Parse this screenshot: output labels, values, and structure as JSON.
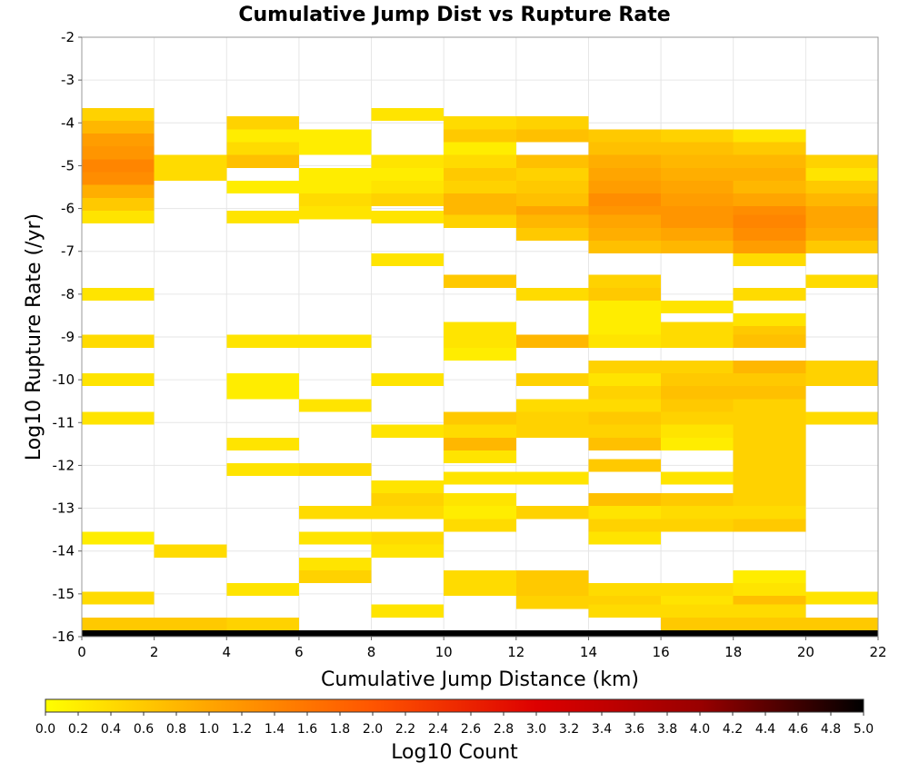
{
  "chart_data": {
    "type": "heatmap",
    "title": "Cumulative Jump Dist vs Rupture Rate",
    "xlabel": "Cumulative Jump Distance (km)",
    "ylabel": "Log10 Rupture Rate (/yr)",
    "xlim": [
      0,
      22
    ],
    "ylim": [
      -16,
      -2
    ],
    "x_ticks": [
      0,
      2,
      4,
      6,
      8,
      10,
      12,
      14,
      16,
      18,
      20,
      22
    ],
    "y_ticks": [
      -2,
      -3,
      -4,
      -5,
      -6,
      -7,
      -8,
      -9,
      -10,
      -11,
      -12,
      -13,
      -14,
      -15,
      -16
    ],
    "grid": true,
    "x_bin_width": 2,
    "y_bin_height": 0.3,
    "colorbar": {
      "label": "Log10 Count",
      "range": [
        0.0,
        5.0
      ],
      "ticks": [
        "0.0",
        "0.2",
        "0.4",
        "0.6",
        "0.8",
        "1.0",
        "1.2",
        "1.4",
        "1.6",
        "1.8",
        "2.0",
        "2.2",
        "2.4",
        "2.6",
        "2.8",
        "3.0",
        "3.2",
        "3.4",
        "3.6",
        "3.8",
        "4.0",
        "4.2",
        "4.4",
        "4.6",
        "4.8",
        "5.0"
      ],
      "colors": [
        "#ffff00",
        "#ffa500",
        "#ff5500",
        "#dd0000",
        "#990000",
        "#000000"
      ]
    },
    "cells_note": "each entry: [x_bin_start_km, log10_rate_bin_center, log10_count]",
    "cells": [
      [
        0,
        -3.8,
        0.5
      ],
      [
        0,
        -4.1,
        0.8
      ],
      [
        0,
        -4.4,
        1.1
      ],
      [
        0,
        -4.7,
        1.2
      ],
      [
        0,
        -5.0,
        1.4
      ],
      [
        0,
        -5.3,
        1.3
      ],
      [
        0,
        -5.6,
        0.9
      ],
      [
        0,
        -5.9,
        0.6
      ],
      [
        0,
        -6.2,
        0.3
      ],
      [
        0,
        -8.0,
        0.3
      ],
      [
        0,
        -9.1,
        0.4
      ],
      [
        0,
        -10.0,
        0.3
      ],
      [
        0,
        -10.9,
        0.3
      ],
      [
        0,
        -13.7,
        0.2
      ],
      [
        0,
        -15.1,
        0.4
      ],
      [
        0,
        -15.7,
        0.6
      ],
      [
        0,
        -16.0,
        5.0
      ],
      [
        2,
        -4.9,
        0.4
      ],
      [
        2,
        -5.2,
        0.4
      ],
      [
        2,
        -14.0,
        0.4
      ],
      [
        2,
        -15.7,
        0.6
      ],
      [
        2,
        -16.0,
        5.0
      ],
      [
        4,
        -4.0,
        0.5
      ],
      [
        4,
        -4.3,
        0.2
      ],
      [
        4,
        -4.6,
        0.4
      ],
      [
        4,
        -4.9,
        0.7
      ],
      [
        4,
        -5.5,
        0.2
      ],
      [
        4,
        -6.2,
        0.3
      ],
      [
        4,
        -9.1,
        0.3
      ],
      [
        4,
        -10.0,
        0.2
      ],
      [
        4,
        -10.3,
        0.2
      ],
      [
        4,
        -11.5,
        0.3
      ],
      [
        4,
        -12.1,
        0.3
      ],
      [
        4,
        -14.9,
        0.3
      ],
      [
        4,
        -15.7,
        0.5
      ],
      [
        4,
        -16.0,
        5.0
      ],
      [
        6,
        -4.3,
        0.2
      ],
      [
        6,
        -4.6,
        0.2
      ],
      [
        6,
        -5.2,
        0.2
      ],
      [
        6,
        -5.5,
        0.2
      ],
      [
        6,
        -5.8,
        0.4
      ],
      [
        6,
        -6.1,
        0.3
      ],
      [
        6,
        -9.1,
        0.3
      ],
      [
        6,
        -10.6,
        0.3
      ],
      [
        6,
        -12.1,
        0.4
      ],
      [
        6,
        -13.1,
        0.4
      ],
      [
        6,
        -13.7,
        0.3
      ],
      [
        6,
        -14.3,
        0.3
      ],
      [
        6,
        -14.6,
        0.5
      ],
      [
        6,
        -16.0,
        5.0
      ],
      [
        8,
        -3.8,
        0.3
      ],
      [
        8,
        -4.9,
        0.3
      ],
      [
        8,
        -5.2,
        0.2
      ],
      [
        8,
        -5.5,
        0.3
      ],
      [
        8,
        -5.8,
        0.5
      ],
      [
        8,
        -6.2,
        0.3
      ],
      [
        8,
        -7.2,
        0.3
      ],
      [
        8,
        -10.0,
        0.3
      ],
      [
        8,
        -11.2,
        0.3
      ],
      [
        8,
        -12.5,
        0.3
      ],
      [
        8,
        -12.8,
        0.5
      ],
      [
        8,
        -13.1,
        0.4
      ],
      [
        8,
        -13.7,
        0.4
      ],
      [
        8,
        -14.0,
        0.3
      ],
      [
        8,
        -15.4,
        0.3
      ],
      [
        8,
        -16.0,
        5.0
      ],
      [
        10,
        -4.0,
        0.4
      ],
      [
        10,
        -4.3,
        0.6
      ],
      [
        10,
        -4.6,
        0.2
      ],
      [
        10,
        -4.9,
        0.4
      ],
      [
        10,
        -5.2,
        0.6
      ],
      [
        10,
        -5.5,
        0.5
      ],
      [
        10,
        -5.8,
        0.8
      ],
      [
        10,
        -6.1,
        0.8
      ],
      [
        10,
        -6.3,
        0.5
      ],
      [
        10,
        -7.7,
        0.6
      ],
      [
        10,
        -8.8,
        0.3
      ],
      [
        10,
        -9.1,
        0.3
      ],
      [
        10,
        -9.4,
        0.2
      ],
      [
        10,
        -10.9,
        0.6
      ],
      [
        10,
        -11.2,
        0.4
      ],
      [
        10,
        -11.5,
        0.8
      ],
      [
        10,
        -11.8,
        0.3
      ],
      [
        10,
        -12.3,
        0.3
      ],
      [
        10,
        -12.8,
        0.3
      ],
      [
        10,
        -13.1,
        0.2
      ],
      [
        10,
        -13.4,
        0.4
      ],
      [
        10,
        -14.6,
        0.4
      ],
      [
        10,
        -14.9,
        0.4
      ],
      [
        10,
        -16.0,
        5.0
      ],
      [
        12,
        -4.0,
        0.5
      ],
      [
        12,
        -4.3,
        0.7
      ],
      [
        12,
        -4.9,
        0.7
      ],
      [
        12,
        -5.2,
        0.5
      ],
      [
        12,
        -5.5,
        0.6
      ],
      [
        12,
        -5.8,
        0.7
      ],
      [
        12,
        -6.1,
        1.0
      ],
      [
        12,
        -6.3,
        0.8
      ],
      [
        12,
        -6.6,
        0.6
      ],
      [
        12,
        -8.0,
        0.4
      ],
      [
        12,
        -9.1,
        0.8
      ],
      [
        12,
        -10.0,
        0.5
      ],
      [
        12,
        -10.6,
        0.4
      ],
      [
        12,
        -10.9,
        0.5
      ],
      [
        12,
        -11.2,
        0.5
      ],
      [
        12,
        -12.3,
        0.3
      ],
      [
        12,
        -13.1,
        0.5
      ],
      [
        12,
        -14.6,
        0.6
      ],
      [
        12,
        -14.9,
        0.6
      ],
      [
        12,
        -15.2,
        0.5
      ],
      [
        12,
        -16.0,
        5.0
      ],
      [
        14,
        -4.3,
        0.6
      ],
      [
        14,
        -4.6,
        0.7
      ],
      [
        14,
        -4.9,
        0.9
      ],
      [
        14,
        -5.2,
        1.0
      ],
      [
        14,
        -5.5,
        1.1
      ],
      [
        14,
        -5.8,
        1.3
      ],
      [
        14,
        -6.1,
        1.2
      ],
      [
        14,
        -6.3,
        1.0
      ],
      [
        14,
        -6.6,
        0.9
      ],
      [
        14,
        -6.9,
        0.7
      ],
      [
        14,
        -7.7,
        0.5
      ],
      [
        14,
        -8.0,
        0.6
      ],
      [
        14,
        -8.3,
        0.2
      ],
      [
        14,
        -8.6,
        0.2
      ],
      [
        14,
        -8.9,
        0.2
      ],
      [
        14,
        -9.1,
        0.3
      ],
      [
        14,
        -9.7,
        0.5
      ],
      [
        14,
        -10.0,
        0.3
      ],
      [
        14,
        -10.3,
        0.5
      ],
      [
        14,
        -10.6,
        0.4
      ],
      [
        14,
        -10.9,
        0.6
      ],
      [
        14,
        -11.2,
        0.5
      ],
      [
        14,
        -11.5,
        0.7
      ],
      [
        14,
        -12.0,
        0.6
      ],
      [
        14,
        -12.8,
        0.7
      ],
      [
        14,
        -13.1,
        0.3
      ],
      [
        14,
        -13.4,
        0.5
      ],
      [
        14,
        -13.7,
        0.3
      ],
      [
        14,
        -14.9,
        0.4
      ],
      [
        14,
        -15.2,
        0.5
      ],
      [
        14,
        -15.4,
        0.4
      ],
      [
        14,
        -16.0,
        5.0
      ],
      [
        16,
        -4.3,
        0.5
      ],
      [
        16,
        -4.6,
        0.7
      ],
      [
        16,
        -4.9,
        0.8
      ],
      [
        16,
        -5.2,
        0.9
      ],
      [
        16,
        -5.5,
        1.0
      ],
      [
        16,
        -5.8,
        1.1
      ],
      [
        16,
        -6.1,
        1.2
      ],
      [
        16,
        -6.3,
        1.2
      ],
      [
        16,
        -6.6,
        1.0
      ],
      [
        16,
        -6.9,
        0.8
      ],
      [
        16,
        -8.3,
        0.3
      ],
      [
        16,
        -8.8,
        0.4
      ],
      [
        16,
        -9.1,
        0.4
      ],
      [
        16,
        -9.7,
        0.5
      ],
      [
        16,
        -10.0,
        0.6
      ],
      [
        16,
        -10.3,
        0.7
      ],
      [
        16,
        -10.6,
        0.6
      ],
      [
        16,
        -10.9,
        0.5
      ],
      [
        16,
        -11.2,
        0.3
      ],
      [
        16,
        -11.5,
        0.2
      ],
      [
        16,
        -12.3,
        0.3
      ],
      [
        16,
        -12.8,
        0.6
      ],
      [
        16,
        -13.1,
        0.4
      ],
      [
        16,
        -13.4,
        0.5
      ],
      [
        16,
        -14.9,
        0.4
      ],
      [
        16,
        -15.2,
        0.3
      ],
      [
        16,
        -15.4,
        0.4
      ],
      [
        16,
        -15.7,
        0.6
      ],
      [
        16,
        -16.0,
        5.0
      ],
      [
        18,
        -4.3,
        0.3
      ],
      [
        18,
        -4.6,
        0.6
      ],
      [
        18,
        -4.9,
        0.8
      ],
      [
        18,
        -5.2,
        0.9
      ],
      [
        18,
        -5.5,
        0.8
      ],
      [
        18,
        -5.8,
        1.0
      ],
      [
        18,
        -6.1,
        1.3
      ],
      [
        18,
        -6.3,
        1.4
      ],
      [
        18,
        -6.6,
        1.3
      ],
      [
        18,
        -6.9,
        1.1
      ],
      [
        18,
        -7.2,
        0.4
      ],
      [
        18,
        -8.0,
        0.4
      ],
      [
        18,
        -8.6,
        0.3
      ],
      [
        18,
        -8.9,
        0.6
      ],
      [
        18,
        -9.1,
        0.7
      ],
      [
        18,
        -9.7,
        0.8
      ],
      [
        18,
        -10.0,
        0.6
      ],
      [
        18,
        -10.3,
        0.7
      ],
      [
        18,
        -10.6,
        0.5
      ],
      [
        18,
        -10.9,
        0.5
      ],
      [
        18,
        -11.2,
        0.5
      ],
      [
        18,
        -11.5,
        0.5
      ],
      [
        18,
        -11.8,
        0.5
      ],
      [
        18,
        -12.0,
        0.5
      ],
      [
        18,
        -12.3,
        0.5
      ],
      [
        18,
        -12.5,
        0.5
      ],
      [
        18,
        -12.8,
        0.5
      ],
      [
        18,
        -13.1,
        0.4
      ],
      [
        18,
        -13.4,
        0.6
      ],
      [
        18,
        -14.6,
        0.2
      ],
      [
        18,
        -14.9,
        0.3
      ],
      [
        18,
        -15.2,
        0.7
      ],
      [
        18,
        -15.4,
        0.4
      ],
      [
        18,
        -15.7,
        0.6
      ],
      [
        18,
        -16.0,
        5.0
      ],
      [
        20,
        -4.9,
        0.5
      ],
      [
        20,
        -5.2,
        0.3
      ],
      [
        20,
        -5.5,
        0.6
      ],
      [
        20,
        -5.8,
        0.8
      ],
      [
        20,
        -6.1,
        1.0
      ],
      [
        20,
        -6.3,
        1.0
      ],
      [
        20,
        -6.6,
        0.9
      ],
      [
        20,
        -6.9,
        0.6
      ],
      [
        20,
        -7.7,
        0.4
      ],
      [
        20,
        -9.7,
        0.5
      ],
      [
        20,
        -10.0,
        0.5
      ],
      [
        20,
        -10.9,
        0.4
      ],
      [
        20,
        -15.1,
        0.3
      ],
      [
        20,
        -15.7,
        0.6
      ],
      [
        20,
        -16.0,
        5.0
      ]
    ]
  }
}
